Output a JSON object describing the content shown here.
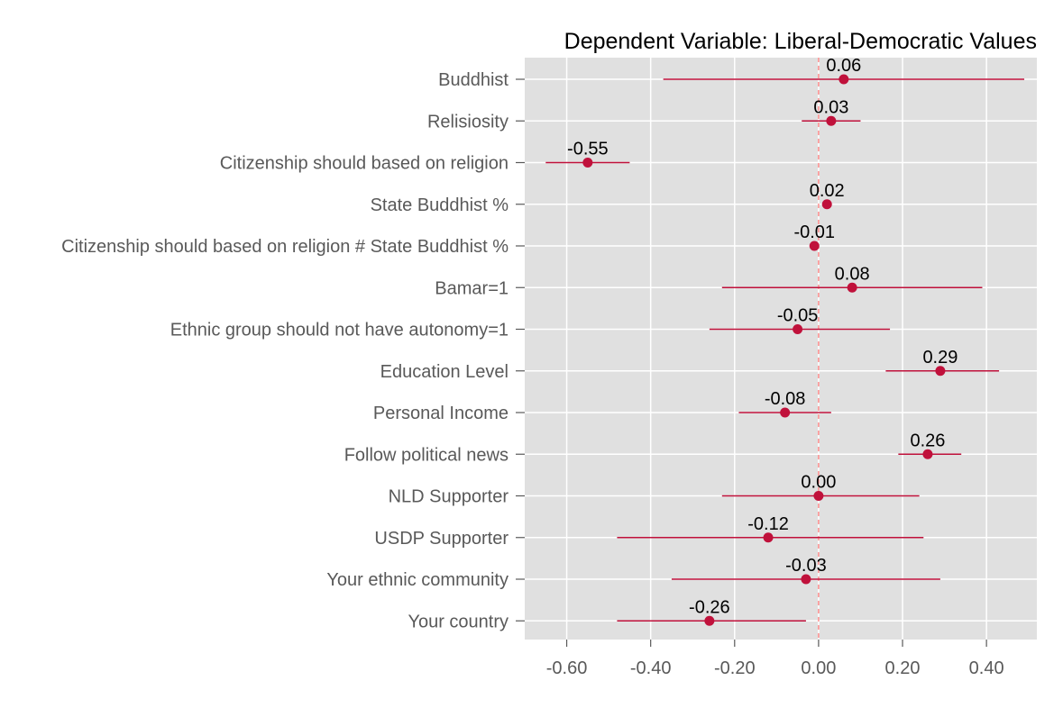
{
  "chart_data": {
    "type": "scatter",
    "subtype": "coefficient-plot",
    "title": "Dependent Variable: Liberal-Democratic Values",
    "xlim": [
      -0.7,
      0.52
    ],
    "xticks": [
      -0.6,
      -0.4,
      -0.2,
      0.0,
      0.2,
      0.4
    ],
    "xtick_labels": [
      "-0.60",
      "-0.40",
      "-0.20",
      "0.00",
      "0.20",
      "0.40"
    ],
    "reference_line": 0,
    "grid": true,
    "colors": {
      "panel": "#e0e0e0",
      "point": "#c0113b",
      "ci": "#c0113b",
      "refline": "#ff7f7f",
      "grid": "#ffffff",
      "axis_text": "#595959"
    },
    "series": [
      {
        "points": [
          {
            "label": "Buddhist",
            "estimate": 0.06,
            "lower": -0.37,
            "upper": 0.49,
            "value_label": "0.06"
          },
          {
            "label": "Relisiosity",
            "estimate": 0.03,
            "lower": -0.04,
            "upper": 0.1,
            "value_label": "0.03"
          },
          {
            "label": "Citizenship should based on religion",
            "estimate": -0.55,
            "lower": -0.65,
            "upper": -0.45,
            "value_label": "-0.55"
          },
          {
            "label": "State Buddhist %",
            "estimate": 0.02,
            "lower": 0.01,
            "upper": 0.03,
            "value_label": "0.02"
          },
          {
            "label": "Citizenship should based on religion # State Buddhist %",
            "estimate": -0.01,
            "lower": -0.02,
            "upper": 0.0,
            "value_label": "-0.01"
          },
          {
            "label": "Bamar=1",
            "estimate": 0.08,
            "lower": -0.23,
            "upper": 0.39,
            "value_label": "0.08"
          },
          {
            "label": "Ethnic group should not have autonomy=1",
            "estimate": -0.05,
            "lower": -0.26,
            "upper": 0.17,
            "value_label": "-0.05"
          },
          {
            "label": "Education Level",
            "estimate": 0.29,
            "lower": 0.16,
            "upper": 0.43,
            "value_label": "0.29"
          },
          {
            "label": "Personal Income",
            "estimate": -0.08,
            "lower": -0.19,
            "upper": 0.03,
            "value_label": "-0.08"
          },
          {
            "label": "Follow political news",
            "estimate": 0.26,
            "lower": 0.19,
            "upper": 0.34,
            "value_label": "0.26"
          },
          {
            "label": "NLD Supporter",
            "estimate": 0.0,
            "lower": -0.23,
            "upper": 0.24,
            "value_label": "0.00"
          },
          {
            "label": "USDP Supporter",
            "estimate": -0.12,
            "lower": -0.48,
            "upper": 0.25,
            "value_label": "-0.12"
          },
          {
            "label": "Your ethnic community",
            "estimate": -0.03,
            "lower": -0.35,
            "upper": 0.29,
            "value_label": "-0.03"
          },
          {
            "label": "Your country",
            "estimate": -0.26,
            "lower": -0.48,
            "upper": -0.03,
            "value_label": "-0.26"
          }
        ]
      }
    ]
  }
}
